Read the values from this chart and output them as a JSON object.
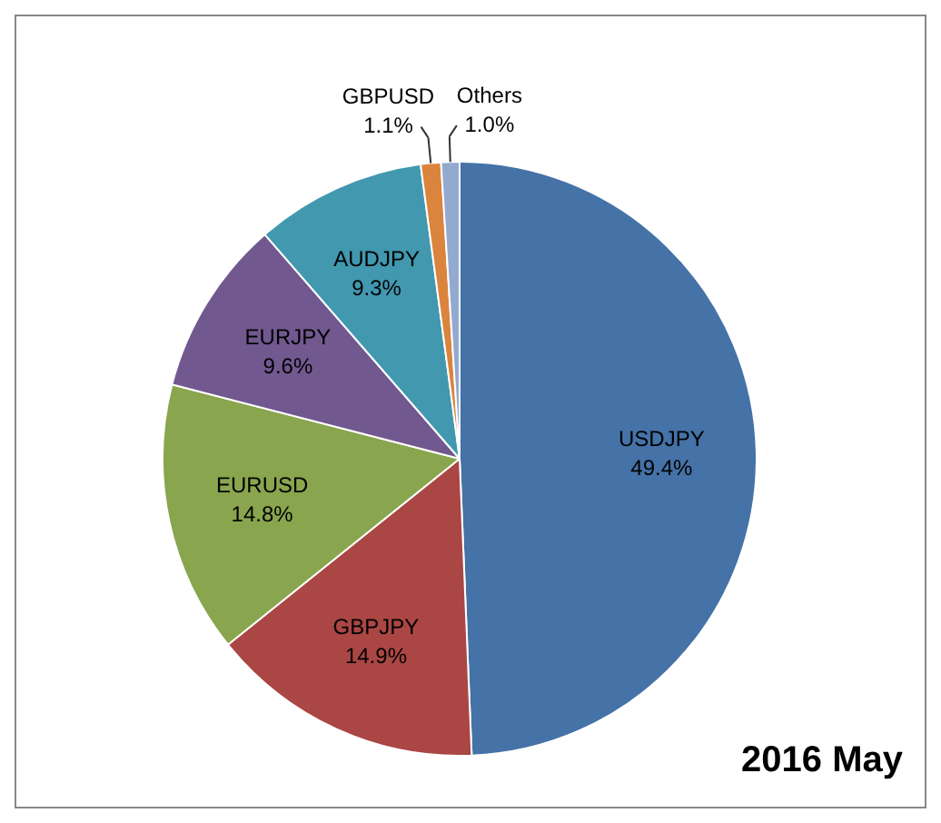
{
  "chart_data": {
    "type": "pie",
    "categories": [
      "USDJPY",
      "GBPJPY",
      "EURUSD",
      "EURJPY",
      "AUDJPY",
      "GBPUSD",
      "Others"
    ],
    "values": [
      49.4,
      14.9,
      14.8,
      9.6,
      9.3,
      1.1,
      1.0
    ],
    "value_labels": [
      "49.4%",
      "14.9%",
      "14.8%",
      "9.6%",
      "9.3%",
      "1.1%",
      "1.0%"
    ],
    "colors": [
      "#4572a7",
      "#aa4643",
      "#89a54e",
      "#71588f",
      "#4198af",
      "#db843d",
      "#93a9cf"
    ],
    "annotations": [
      "2016 May"
    ],
    "legend": false
  }
}
